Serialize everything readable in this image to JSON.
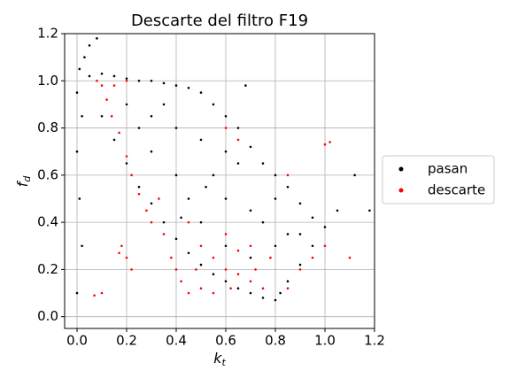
{
  "chart_data": {
    "type": "scatter",
    "title": "Descarte del filtro F19",
    "xlabel": {
      "main": "k",
      "sub": "t"
    },
    "ylabel": {
      "main": "f",
      "sub": "d"
    },
    "xlim": [
      -0.05,
      1.2
    ],
    "ylim": [
      -0.05,
      1.2
    ],
    "xticks": [
      {
        "value": 0,
        "label": "0.0"
      },
      {
        "value": 0.2,
        "label": "0.2"
      },
      {
        "value": 0.4,
        "label": "0.4"
      },
      {
        "value": 0.6,
        "label": "0.6"
      },
      {
        "value": 0.8,
        "label": "0.8"
      },
      {
        "value": 1,
        "label": "1.0"
      },
      {
        "value": 1.2,
        "label": "1.2"
      }
    ],
    "yticks": [
      {
        "value": 0,
        "label": "0.0"
      },
      {
        "value": 0.2,
        "label": "0.2"
      },
      {
        "value": 0.4,
        "label": "0.4"
      },
      {
        "value": 0.6,
        "label": "0.6"
      },
      {
        "value": 0.8,
        "label": "0.8"
      },
      {
        "value": 1,
        "label": "1.0"
      },
      {
        "value": 1.2,
        "label": "1.2"
      }
    ],
    "grid": true,
    "legend": "outside-right",
    "series": [
      {
        "name": "pasan",
        "color": "#000000",
        "x": [
          0.0,
          0.01,
          0.02,
          0.0,
          0.03,
          0.05,
          0.08,
          0.01,
          0.02,
          0.0,
          0.05,
          0.1,
          0.15,
          0.2,
          0.25,
          0.3,
          0.35,
          0.4,
          0.45,
          0.5,
          0.55,
          0.6,
          0.65,
          0.7,
          0.75,
          0.8,
          0.85,
          0.9,
          0.95,
          1.0,
          1.05,
          1.12,
          1.18,
          0.1,
          0.15,
          0.2,
          0.25,
          0.3,
          0.35,
          0.4,
          0.45,
          0.5,
          0.55,
          0.6,
          0.65,
          0.7,
          0.75,
          0.8,
          0.82,
          0.85,
          0.9,
          0.95,
          0.2,
          0.3,
          0.3,
          0.4,
          0.4,
          0.45,
          0.5,
          0.5,
          0.55,
          0.6,
          0.6,
          0.65,
          0.7,
          0.7,
          0.75,
          0.8,
          0.8,
          0.85,
          0.9,
          0.6,
          0.35,
          0.25,
          0.68,
          0.52,
          0.42
        ],
        "values": [
          0.95,
          1.05,
          0.85,
          0.7,
          1.1,
          1.15,
          1.18,
          0.5,
          0.3,
          0.1,
          1.02,
          1.03,
          1.02,
          1.01,
          1.0,
          1.0,
          0.99,
          0.98,
          0.97,
          0.95,
          0.9,
          0.85,
          0.8,
          0.72,
          0.65,
          0.6,
          0.55,
          0.48,
          0.42,
          0.38,
          0.45,
          0.6,
          0.45,
          0.85,
          0.75,
          0.65,
          0.55,
          0.48,
          0.4,
          0.33,
          0.27,
          0.22,
          0.18,
          0.15,
          0.12,
          0.1,
          0.08,
          0.07,
          0.1,
          0.15,
          0.22,
          0.3,
          0.9,
          0.85,
          0.7,
          0.8,
          0.6,
          0.5,
          0.75,
          0.4,
          0.6,
          0.5,
          0.3,
          0.65,
          0.45,
          0.25,
          0.4,
          0.3,
          0.5,
          0.35,
          0.35,
          0.7,
          0.9,
          0.8,
          0.98,
          0.55,
          0.42
        ]
      },
      {
        "name": "descarte",
        "color": "#ff0000",
        "x": [
          0.08,
          0.1,
          0.12,
          0.14,
          0.17,
          0.2,
          0.22,
          0.25,
          0.28,
          0.3,
          0.18,
          0.2,
          0.17,
          0.22,
          0.35,
          0.38,
          0.4,
          0.42,
          0.45,
          0.5,
          0.5,
          0.55,
          0.55,
          0.6,
          0.6,
          0.62,
          0.65,
          0.65,
          0.7,
          0.7,
          0.72,
          0.75,
          0.78,
          0.85,
          0.9,
          0.95,
          1.0,
          1.1,
          1.0,
          1.02,
          0.85,
          0.6,
          0.65,
          0.2,
          0.15,
          0.33,
          0.45,
          0.1,
          0.07,
          0.48
        ],
        "values": [
          1.0,
          0.98,
          0.92,
          0.85,
          0.78,
          0.68,
          0.6,
          0.52,
          0.45,
          0.4,
          0.3,
          0.25,
          0.27,
          0.2,
          0.35,
          0.25,
          0.2,
          0.15,
          0.1,
          0.12,
          0.3,
          0.25,
          0.1,
          0.35,
          0.2,
          0.12,
          0.28,
          0.18,
          0.15,
          0.3,
          0.2,
          0.12,
          0.25,
          0.12,
          0.2,
          0.25,
          0.3,
          0.25,
          0.73,
          0.74,
          0.6,
          0.8,
          0.75,
          1.0,
          0.98,
          0.5,
          0.4,
          0.1,
          0.09,
          0.2
        ]
      }
    ]
  }
}
